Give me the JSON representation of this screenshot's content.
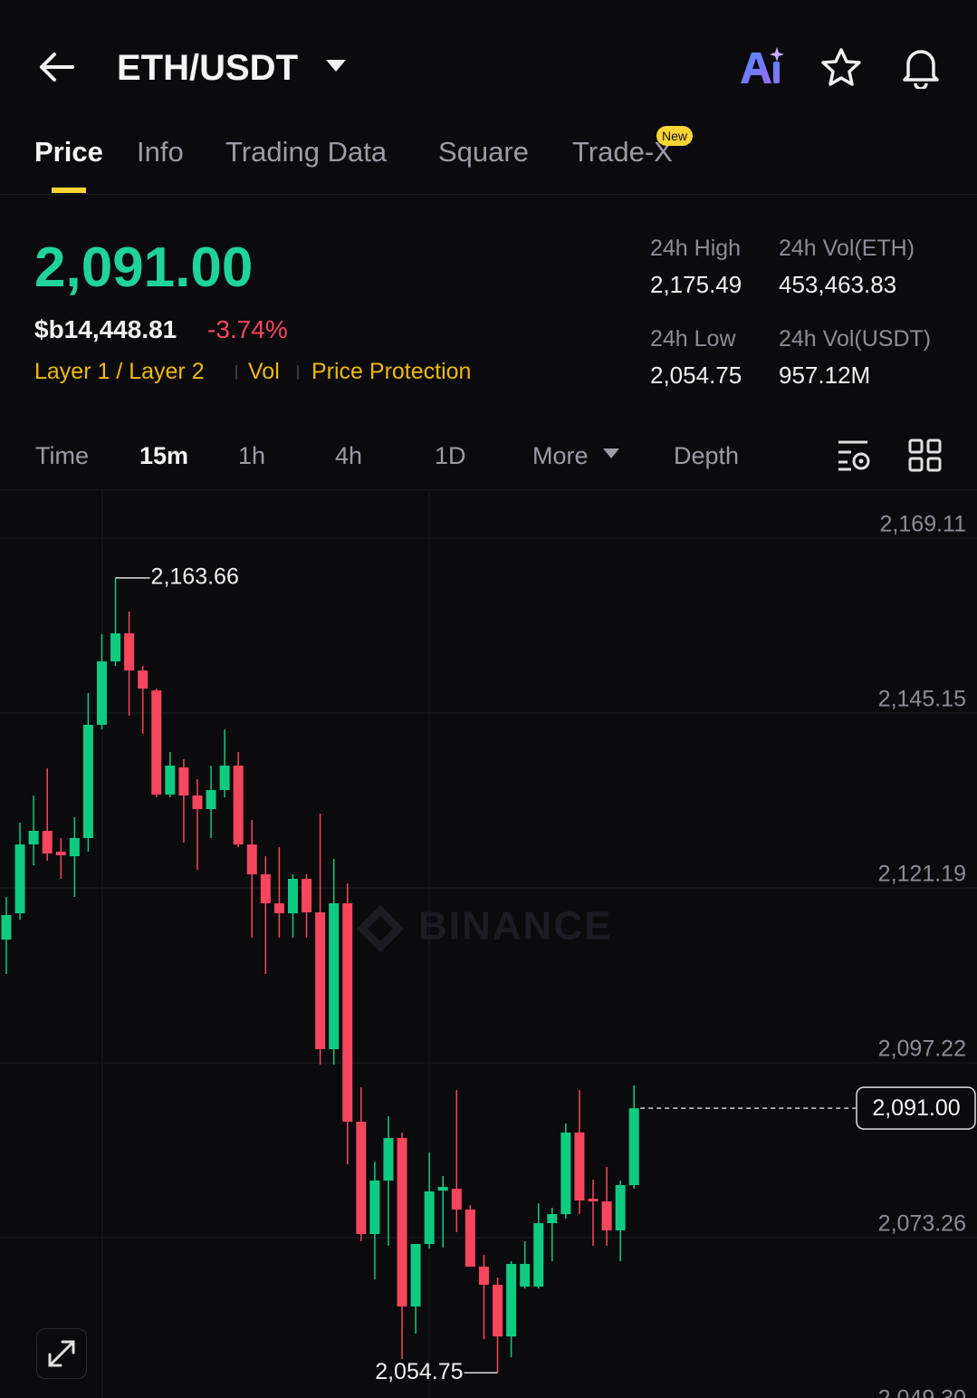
{
  "header": {
    "pair": "ETH/USDT"
  },
  "tabs": [
    "Price",
    "Info",
    "Trading Data",
    "Square",
    "Trade-X"
  ],
  "tab_badge": "New",
  "price": {
    "last": "2,091.00",
    "fiat": "$b14,448.81",
    "change": "-3.74%",
    "tags": [
      "Layer 1 / Layer 2",
      "Vol",
      "Price Protection"
    ]
  },
  "stats": [
    {
      "label": "24h High",
      "value": "2,175.49"
    },
    {
      "label": "24h Vol(ETH)",
      "value": "453,463.83"
    },
    {
      "label": "24h Low",
      "value": "2,054.75"
    },
    {
      "label": "24h Vol(USDT)",
      "value": "957.12M"
    }
  ],
  "intervals": [
    "Time",
    "15m",
    "1h",
    "4h",
    "1D",
    "More",
    "Depth"
  ],
  "chart_data": {
    "type": "candlestick",
    "watermark": "BINANCE",
    "grid": true,
    "up_color": "#0ecb81",
    "down_color": "#f6465d",
    "ylim": [
      2048.9,
      2175.69
    ],
    "yticks": [
      {
        "value": 2169.11,
        "label": "2,169.11"
      },
      {
        "value": 2145.15,
        "label": "2,145.15"
      },
      {
        "value": 2121.19,
        "label": "2,121.19"
      },
      {
        "value": 2097.22,
        "label": "2,097.22"
      },
      {
        "value": 2073.26,
        "label": "2,073.26"
      },
      {
        "value": 2049.3,
        "label": "2,049.30"
      }
    ],
    "open": [
      2114.11,
      2117.71,
      2127.15,
      2129.01,
      2126.15,
      2125.53,
      2128.02,
      2143.54,
      2152.23,
      2156.07,
      2150.98,
      2148.25,
      2133.98,
      2137.7,
      2133.85,
      2131.99,
      2134.6,
      2137.95,
      2127.15,
      2123.05,
      2119.08,
      2117.71,
      2122.43,
      2117.84,
      2099.09,
      2119.08,
      2089.16,
      2073.76,
      2081.09,
      2086.92,
      2063.83,
      2072.4,
      2079.72,
      2079.97,
      2077.12,
      2069.29,
      2066.81,
      2059.73,
      2066.56,
      2066.56,
      2075.25,
      2076.49,
      2087.67,
      2078.6,
      2078.23,
      2074.26,
      2080.47
    ],
    "high": [
      2119.95,
      2130.13,
      2133.85,
      2137.58,
      2128.02,
      2130.87,
      2147.88,
      2155.95,
      2163.66,
      2159.05,
      2151.6,
      2148.5,
      2139.81,
      2138.82,
      2136.09,
      2137.95,
      2142.91,
      2139.81,
      2130.5,
      2125.53,
      2126.77,
      2123.05,
      2123.05,
      2131.37,
      2125.16,
      2121.81,
      2093.88,
      2083.69,
      2089.9,
      2087.67,
      2072.4,
      2084.94,
      2081.71,
      2093.5,
      2077.74,
      2070.91,
      2067.8,
      2070.04,
      2072.77,
      2077.98,
      2077.36,
      2088.91,
      2093.5,
      2081.21,
      2082.95,
      2081.09,
      2094.12
    ],
    "low": [
      2109.39,
      2116.84,
      2124.29,
      2124.91,
      2122.43,
      2119.95,
      2126.15,
      2142.91,
      2151.6,
      2144.78,
      2142.29,
      2133.6,
      2133.6,
      2127.4,
      2123.67,
      2128.02,
      2133.6,
      2126.77,
      2114.36,
      2109.39,
      2114.36,
      2114.36,
      2114.36,
      2096.98,
      2096.98,
      2083.32,
      2072.77,
      2067.56,
      2072.15,
      2056.63,
      2060.11,
      2071.78,
      2071.9,
      2074.01,
      2069.29,
      2059.36,
      2054.75,
      2056.88,
      2066.31,
      2066.31,
      2070.04,
      2075.87,
      2076.49,
      2072.15,
      2072.15,
      2070.04,
      2079.97
    ],
    "close": [
      2117.46,
      2127.15,
      2129.01,
      2125.91,
      2125.66,
      2128.02,
      2143.54,
      2152.23,
      2156.07,
      2150.98,
      2148.5,
      2133.98,
      2137.95,
      2133.85,
      2131.99,
      2134.6,
      2137.95,
      2127.15,
      2123.05,
      2119.08,
      2117.71,
      2122.43,
      2117.84,
      2099.09,
      2119.08,
      2089.16,
      2073.76,
      2081.09,
      2086.92,
      2063.83,
      2072.4,
      2079.6,
      2080.22,
      2077.12,
      2069.29,
      2066.81,
      2059.73,
      2069.67,
      2069.67,
      2075.25,
      2076.49,
      2087.67,
      2078.36,
      2078.23,
      2074.26,
      2080.47,
      2091.0
    ],
    "annotations": {
      "high": {
        "value": 2163.66,
        "label": "2,163.66"
      },
      "low": {
        "value": 2054.75,
        "label": "2,054.75"
      }
    },
    "last_price": {
      "value": 2091.0,
      "label": "2,091.00"
    }
  }
}
